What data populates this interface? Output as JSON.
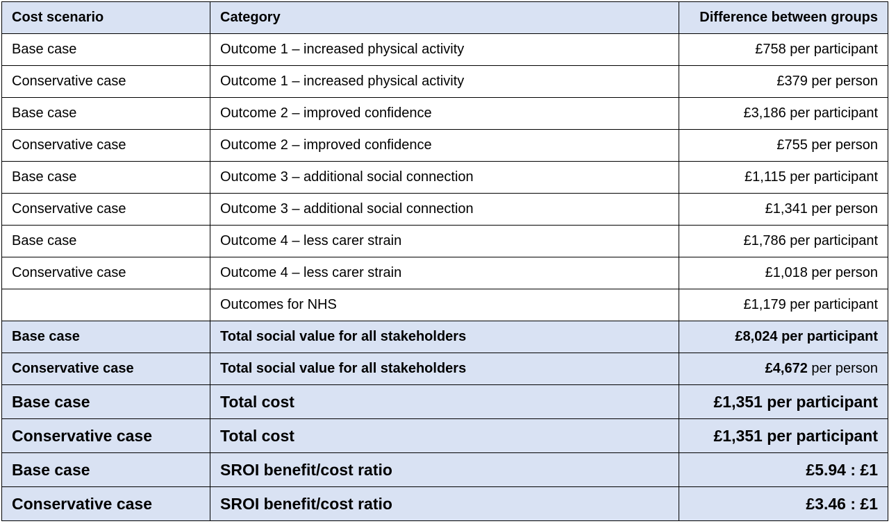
{
  "table": {
    "headers": [
      "Cost scenario",
      "Category",
      "Difference between groups"
    ],
    "rows": [
      {
        "scenario": "Base case",
        "category": "Outcome 1 – increased physical activity",
        "value": "£758 per participant"
      },
      {
        "scenario": "Conservative case",
        "category": "Outcome 1 – increased physical activity",
        "value": "£379 per person"
      },
      {
        "scenario": "Base case",
        "category": "Outcome 2 – improved confidence",
        "value": "£3,186 per participant"
      },
      {
        "scenario": "Conservative case",
        "category": "Outcome 2 – improved confidence",
        "value": "£755 per person"
      },
      {
        "scenario": "Base case",
        "category": "Outcome 3 – additional social connection",
        "value": "£1,115 per participant"
      },
      {
        "scenario": "Conservative case",
        "category": "Outcome 3 – additional social connection",
        "value": "£1,341 per person"
      },
      {
        "scenario": "Base case",
        "category": "Outcome 4 – less carer strain",
        "value": "£1,786 per participant"
      },
      {
        "scenario": "Conservative case",
        "category": "Outcome 4 – less carer strain",
        "value": "£1,018 per person"
      },
      {
        "scenario": "",
        "category": "Outcomes for NHS",
        "value": "£1,179 per participant"
      }
    ],
    "totals": [
      {
        "scenario": "Base case",
        "category": "Total social value for all stakeholders",
        "value": "£8,024 per participant"
      },
      {
        "scenario": "Conservative case",
        "category": "Total social value for all stakeholders",
        "value_bold": "£4,672",
        "value_rest": " per person"
      },
      {
        "scenario": "Base case",
        "category": "Total cost",
        "value": "£1,351 per participant"
      },
      {
        "scenario": "Conservative case",
        "category": "Total cost",
        "value": "£1,351 per participant"
      },
      {
        "scenario": "Base case",
        "category": "SROI benefit/cost ratio",
        "value": "£5.94 : £1"
      },
      {
        "scenario": "Conservative case",
        "category": "SROI benefit/cost ratio",
        "value": "£3.46 : £1"
      }
    ]
  },
  "colors": {
    "header_bg": "#d9e2f3",
    "border": "#000000"
  }
}
